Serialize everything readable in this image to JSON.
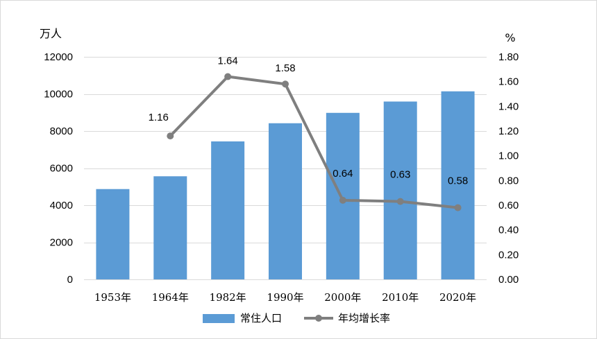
{
  "chart_data": {
    "type": "bar",
    "categories": [
      "1953年",
      "1964年",
      "1982年",
      "1990年",
      "2000年",
      "2010年",
      "2020年"
    ],
    "series": [
      {
        "name": "常住人口",
        "type": "bar",
        "axis": "left",
        "color": "#5b9bd5",
        "values": [
          4870,
          5560,
          7440,
          8420,
          8980,
          9590,
          10140
        ]
      },
      {
        "name": "年均增长率",
        "type": "line",
        "axis": "right",
        "color": "#7f7f7f",
        "values": [
          null,
          1.16,
          1.64,
          1.58,
          0.64,
          0.63,
          0.58
        ],
        "data_labels": [
          null,
          "1.16",
          "1.64",
          "1.58",
          "0.64",
          "0.63",
          "0.58"
        ]
      }
    ],
    "y_left": {
      "unit": "万人",
      "ylim": [
        0,
        12000
      ],
      "ticks": [
        "0",
        "2000",
        "4000",
        "6000",
        "8000",
        "10000",
        "12000"
      ],
      "tick_values": [
        0,
        2000,
        4000,
        6000,
        8000,
        10000,
        12000
      ]
    },
    "y_right": {
      "unit": "%",
      "ylim": [
        0,
        1.8
      ],
      "ticks": [
        "0.00",
        "0.20",
        "0.40",
        "0.60",
        "0.80",
        "1.00",
        "1.20",
        "1.40",
        "1.60",
        "1.80"
      ],
      "tick_values": [
        0,
        0.2,
        0.4,
        0.6,
        0.8,
        1.0,
        1.2,
        1.4,
        1.6,
        1.8
      ]
    },
    "grid": true,
    "legend_position": "bottom"
  }
}
